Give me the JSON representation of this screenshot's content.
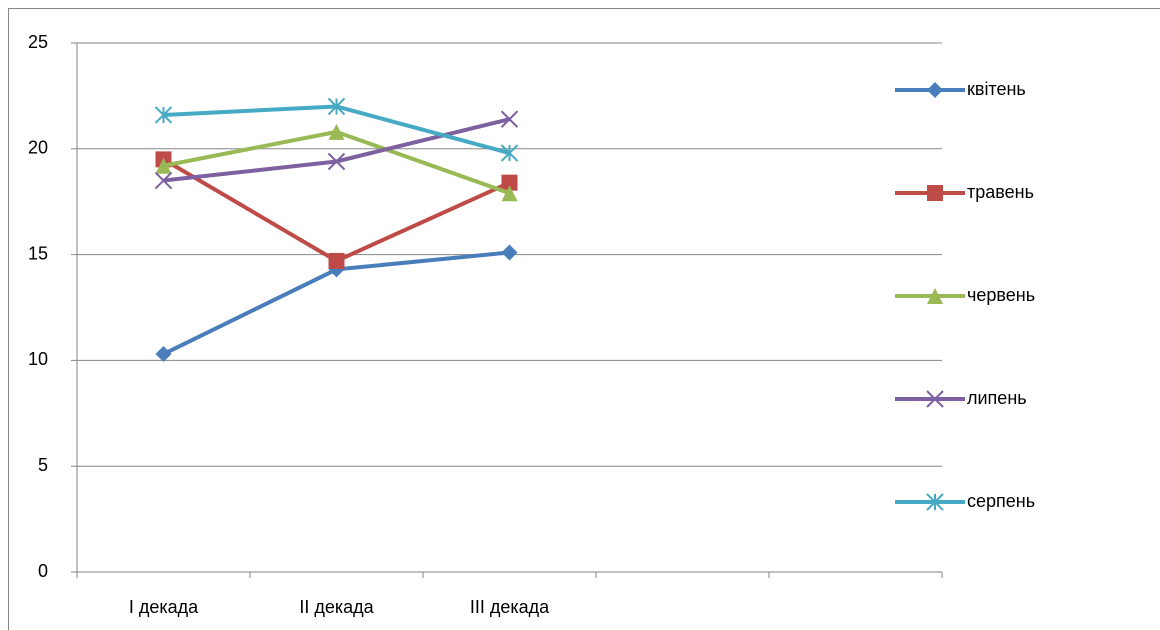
{
  "chart_data": {
    "type": "line",
    "categories": [
      "I декада",
      "II декада",
      "III декада",
      null,
      null
    ],
    "series": [
      {
        "name": "квітень",
        "color": "#4a7ebb",
        "marker": "diamond",
        "values": [
          10.3,
          14.3,
          15.1,
          null,
          null
        ]
      },
      {
        "name": "травень",
        "color": "#be4b48",
        "marker": "square",
        "values": [
          19.5,
          14.7,
          18.4,
          null,
          null
        ]
      },
      {
        "name": "червень",
        "color": "#98b954",
        "marker": "triangle",
        "values": [
          19.2,
          20.8,
          17.9,
          null,
          null
        ]
      },
      {
        "name": "липень",
        "color": "#7d60a0",
        "marker": "x",
        "values": [
          18.5,
          19.4,
          21.4,
          null,
          null
        ]
      },
      {
        "name": "серпень",
        "color": "#46aac5",
        "marker": "star",
        "values": [
          21.6,
          22.0,
          19.8,
          null,
          null
        ]
      }
    ],
    "ylim": [
      0,
      25
    ],
    "yticks": [
      0,
      5,
      10,
      15,
      20,
      25
    ],
    "grid": true,
    "legend": "right"
  }
}
